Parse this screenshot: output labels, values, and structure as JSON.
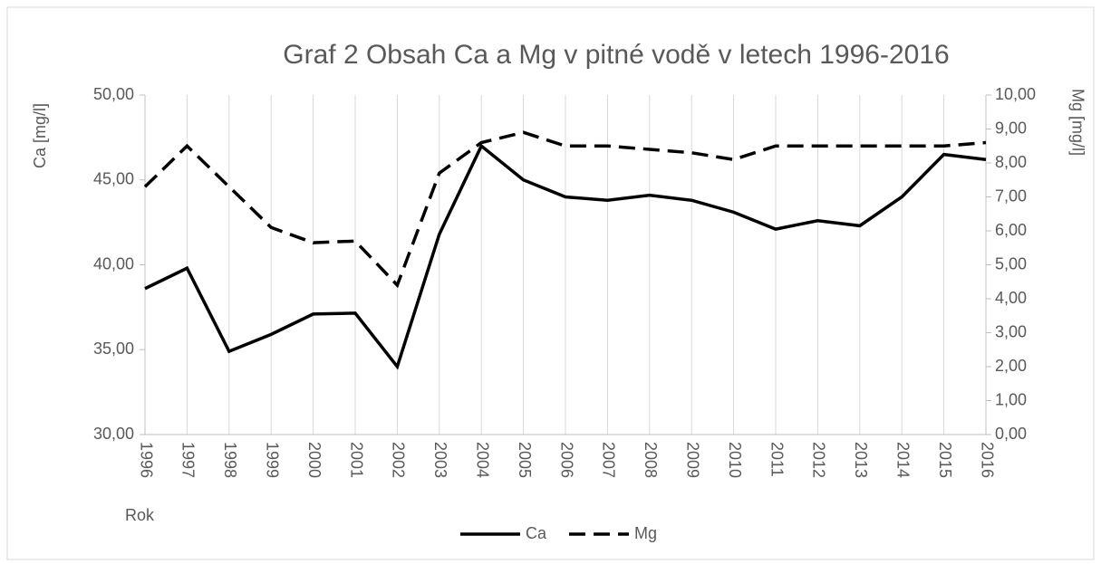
{
  "chart_data": {
    "type": "line",
    "title": "Graf 2 Obsah Ca a Mg v pitné vodě v letech 1996-2016",
    "x_label": "Rok",
    "y_label": "Ca [mg/l]",
    "y2_label": "Mg [mg/l]",
    "categories": [
      "1996",
      "1997",
      "1998",
      "1999",
      "2000",
      "2001",
      "2002",
      "2003",
      "2004",
      "2005",
      "2006",
      "2007",
      "2008",
      "2009",
      "2010",
      "2011",
      "2012",
      "2013",
      "2014",
      "2015",
      "2016"
    ],
    "series": [
      {
        "name": "Ca",
        "color": "#000000",
        "dash": "solid",
        "axis": "y",
        "values": [
          38.6,
          39.8,
          34.9,
          35.9,
          37.1,
          37.15,
          34.0,
          41.8,
          47.0,
          45.0,
          44.0,
          43.8,
          44.1,
          43.8,
          43.1,
          42.1,
          42.6,
          42.3,
          44.0,
          46.5,
          46.2
        ]
      },
      {
        "name": "Mg",
        "color": "#000000",
        "dash": "dashed",
        "axis": "y2",
        "values": [
          7.3,
          8.5,
          7.3,
          6.1,
          5.65,
          5.7,
          4.4,
          7.7,
          8.6,
          8.9,
          8.5,
          8.5,
          8.4,
          8.3,
          8.1,
          8.5,
          8.5,
          8.5,
          8.5,
          8.5,
          8.6
        ]
      }
    ],
    "ylim": [
      30,
      50
    ],
    "yticks": [
      {
        "value": 30,
        "label": "30,00"
      },
      {
        "value": 35,
        "label": "35,00"
      },
      {
        "value": 40,
        "label": "40,00"
      },
      {
        "value": 45,
        "label": "45,00"
      },
      {
        "value": 50,
        "label": "50,00"
      }
    ],
    "y2lim": [
      0,
      10
    ],
    "y2ticks": [
      {
        "value": 0,
        "label": "0,00"
      },
      {
        "value": 1,
        "label": "1,00"
      },
      {
        "value": 2,
        "label": "2,00"
      },
      {
        "value": 3,
        "label": "3,00"
      },
      {
        "value": 4,
        "label": "4,00"
      },
      {
        "value": 5,
        "label": "5,00"
      },
      {
        "value": 6,
        "label": "6,00"
      },
      {
        "value": 7,
        "label": "7,00"
      },
      {
        "value": 8,
        "label": "8,00"
      },
      {
        "value": 9,
        "label": "9,00"
      },
      {
        "value": 10,
        "label": "10,00"
      }
    ],
    "grid": "vertical",
    "legend": "bottom"
  }
}
